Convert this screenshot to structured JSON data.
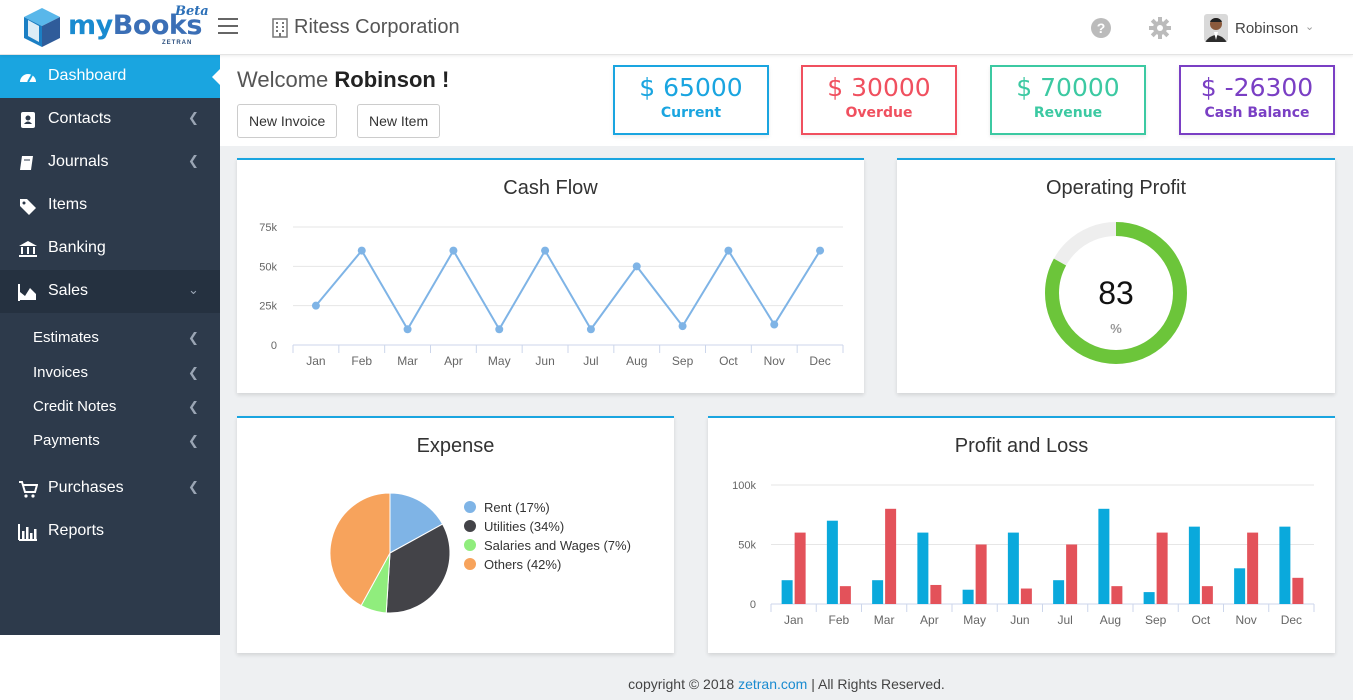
{
  "brand": {
    "my": "my",
    "books": "Books",
    "beta": "Beta",
    "sub": "ZETRAN"
  },
  "header": {
    "company": "Ritess Corporation",
    "user": "Robinson"
  },
  "sidebar": {
    "items": [
      {
        "label": "Dashboard"
      },
      {
        "label": "Contacts"
      },
      {
        "label": "Journals"
      },
      {
        "label": "Items"
      },
      {
        "label": "Banking"
      },
      {
        "label": "Sales"
      },
      {
        "label": "Purchases"
      },
      {
        "label": "Reports"
      }
    ],
    "sales_sub": [
      {
        "label": "Estimates"
      },
      {
        "label": "Invoices"
      },
      {
        "label": "Credit Notes"
      },
      {
        "label": "Payments"
      }
    ]
  },
  "welcome": {
    "prefix": "Welcome",
    "name": "Robinson !"
  },
  "buttons": {
    "new_invoice": "New Invoice",
    "new_item": "New Item"
  },
  "stats": [
    {
      "amount": "$ 65000",
      "caption": "Current",
      "color": "#1aa5e0"
    },
    {
      "amount": "$ 30000",
      "caption": "Overdue",
      "color": "#f0505f"
    },
    {
      "amount": "$ 70000",
      "caption": "Revenue",
      "color": "#3cc9a2"
    },
    {
      "amount": "$ -26300",
      "caption": "Cash Balance",
      "color": "#7a3fc4"
    }
  ],
  "panels": {
    "cash_flow": "Cash Flow",
    "operating_profit": "Operating Profit",
    "expense": "Expense",
    "profit_loss": "Profit and Loss"
  },
  "gauge": {
    "value": "83",
    "unit": "%",
    "fraction": 0.83,
    "color": "#6cc53a"
  },
  "footer": {
    "copyright": "copyright © 2018",
    "link": "zetran.com",
    "rights": "| All Rights Reserved."
  },
  "chart_data": [
    {
      "type": "line",
      "title": "Cash Flow",
      "categories": [
        "Jan",
        "Feb",
        "Mar",
        "Apr",
        "May",
        "Jun",
        "Jul",
        "Aug",
        "Sep",
        "Oct",
        "Nov",
        "Dec"
      ],
      "values": [
        25000,
        60000,
        10000,
        60000,
        10000,
        60000,
        10000,
        50000,
        12000,
        60000,
        13000,
        60000
      ],
      "ylim": [
        0,
        75000
      ],
      "ticks": [
        "0",
        "25k",
        "50k",
        "75k"
      ],
      "color": "#7fb4e6"
    },
    {
      "type": "pie",
      "title": "Expense",
      "slices": [
        {
          "name": "Rent (17%)",
          "value": 17,
          "color": "#7fb4e6"
        },
        {
          "name": "Utilities (34%)",
          "value": 34,
          "color": "#434348"
        },
        {
          "name": "Salaries and Wages (7%)",
          "value": 7,
          "color": "#90ed7d"
        },
        {
          "name": "Others (42%)",
          "value": 42,
          "color": "#f7a35c"
        }
      ],
      "legend": "right"
    },
    {
      "type": "bar",
      "title": "Profit and Loss",
      "categories": [
        "Jan",
        "Feb",
        "Mar",
        "Apr",
        "May",
        "Jun",
        "Jul",
        "Aug",
        "Sep",
        "Oct",
        "Nov",
        "Dec"
      ],
      "series": [
        {
          "values": [
            20000,
            70000,
            20000,
            60000,
            12000,
            60000,
            20000,
            80000,
            10000,
            65000,
            30000,
            65000
          ],
          "color": "#0aa9dc"
        },
        {
          "values": [
            60000,
            15000,
            80000,
            16000,
            50000,
            13000,
            50000,
            15000,
            60000,
            15000,
            60000,
            22000
          ],
          "color": "#e3525a"
        }
      ],
      "ylim": [
        0,
        100000
      ],
      "ticks": [
        "0",
        "50k",
        "100k"
      ]
    }
  ]
}
